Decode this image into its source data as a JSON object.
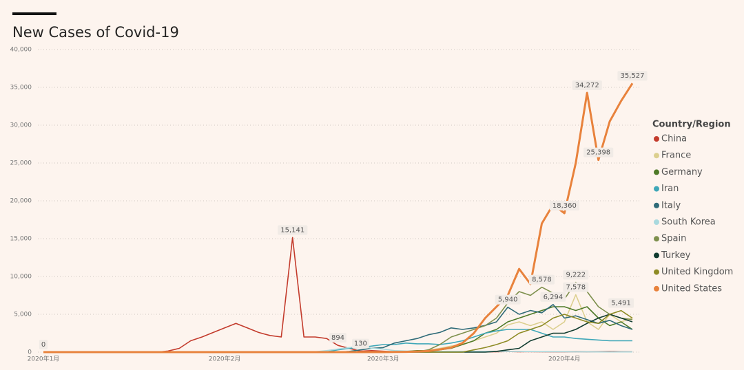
{
  "chart_data": {
    "type": "line",
    "title": "New Cases of Covid-19",
    "legend_title": "Country/Region",
    "legend": "right",
    "ylim": [
      0,
      40000
    ],
    "yticks": [
      0,
      {
        "value": 5000,
        "label": "5,000"
      },
      {
        "value": 10000,
        "label": "10,000"
      },
      {
        "value": 15000,
        "label": "15,000"
      },
      {
        "value": 20000,
        "label": "20,000"
      },
      {
        "value": 25000,
        "label": "25,000"
      },
      {
        "value": 30000,
        "label": "30,000"
      },
      {
        "value": 35000,
        "label": "35,000"
      },
      {
        "value": 40000,
        "label": "40,000"
      }
    ],
    "grid": true,
    "categories": [
      "2020年1月",
      null,
      null,
      null,
      null,
      null,
      null,
      null,
      null,
      null,
      null,
      null,
      null,
      null,
      null,
      null,
      "2020年2月",
      null,
      null,
      null,
      null,
      null,
      null,
      null,
      null,
      null,
      null,
      null,
      null,
      null,
      "2020年3月",
      null,
      null,
      null,
      null,
      null,
      null,
      null,
      null,
      null,
      null,
      null,
      null,
      null,
      null,
      null,
      "2020年4月",
      null,
      null,
      null,
      null,
      null,
      null
    ],
    "series": [
      {
        "name": "China",
        "color": "#c33b2c",
        "values": [
          0,
          0,
          0,
          0,
          0,
          0,
          0,
          0,
          0,
          0,
          0,
          150,
          500,
          1500,
          2000,
          2600,
          3200,
          3800,
          3200,
          2600,
          2200,
          2000,
          15141,
          2000,
          2000,
          1800,
          894,
          500,
          130,
          200,
          120,
          50,
          40,
          30,
          20,
          40,
          50,
          80,
          50,
          40,
          50,
          80,
          50,
          60,
          50,
          40,
          35,
          60,
          40,
          50,
          90,
          50,
          40
        ],
        "value_labels": [
          "0",
          null,
          null,
          null,
          null,
          null,
          null,
          null,
          null,
          null,
          null,
          null,
          null,
          null,
          null,
          null,
          null,
          null,
          null,
          null,
          null,
          null,
          "15,141",
          null,
          null,
          null,
          "894",
          null,
          "130",
          null,
          null,
          null,
          null,
          null,
          null,
          null,
          null,
          null,
          null,
          null,
          null,
          null,
          null,
          null,
          null,
          null,
          null,
          null,
          null,
          null,
          null,
          null,
          null
        ]
      },
      {
        "name": "France",
        "color": "#dccf8e",
        "values": [
          0,
          0,
          0,
          0,
          0,
          0,
          0,
          0,
          0,
          0,
          0,
          0,
          0,
          0,
          0,
          0,
          0,
          0,
          0,
          0,
          0,
          0,
          0,
          0,
          0,
          0,
          0,
          0,
          0,
          0,
          0,
          0,
          0,
          0,
          200,
          500,
          800,
          1000,
          1500,
          2000,
          2500,
          3600,
          4000,
          3500,
          4000,
          3000,
          4000,
          7578,
          4000,
          3000,
          5000,
          4000,
          4500
        ],
        "value_labels": [
          null,
          null,
          null,
          null,
          null,
          null,
          null,
          null,
          null,
          null,
          null,
          null,
          null,
          null,
          null,
          null,
          null,
          null,
          null,
          null,
          null,
          null,
          null,
          null,
          null,
          null,
          null,
          null,
          null,
          null,
          null,
          null,
          null,
          null,
          null,
          null,
          null,
          null,
          null,
          null,
          null,
          null,
          null,
          null,
          null,
          null,
          null,
          "7,578",
          null,
          null,
          null,
          null,
          null
        ]
      },
      {
        "name": "Germany",
        "color": "#4e7a27",
        "values": [
          0,
          0,
          0,
          0,
          0,
          0,
          0,
          0,
          0,
          0,
          0,
          0,
          0,
          0,
          0,
          0,
          0,
          0,
          0,
          0,
          0,
          0,
          0,
          0,
          0,
          0,
          0,
          0,
          0,
          0,
          0,
          0,
          100,
          200,
          200,
          300,
          500,
          1000,
          1500,
          2500,
          3000,
          4000,
          4500,
          5000,
          5500,
          6000,
          6000,
          5500,
          6000,
          4500,
          3500,
          4000,
          3000
        ]
      },
      {
        "name": "Iran",
        "color": "#3ea7b8",
        "values": [
          0,
          0,
          0,
          0,
          0,
          0,
          0,
          0,
          0,
          0,
          0,
          0,
          0,
          0,
          0,
          0,
          0,
          0,
          0,
          0,
          0,
          0,
          0,
          0,
          0,
          50,
          300,
          500,
          600,
          800,
          1000,
          1000,
          1200,
          1100,
          1100,
          1000,
          1200,
          1500,
          2000,
          2500,
          2800,
          3000,
          3000,
          3000,
          2500,
          2000,
          2000,
          1800,
          1700,
          1600,
          1500,
          1500,
          1500
        ]
      },
      {
        "name": "Italy",
        "color": "#2f6b78",
        "values": [
          0,
          0,
          0,
          0,
          0,
          0,
          0,
          0,
          0,
          0,
          0,
          0,
          0,
          0,
          0,
          0,
          0,
          0,
          0,
          0,
          0,
          0,
          0,
          0,
          0,
          0,
          0,
          100,
          300,
          500,
          600,
          1200,
          1500,
          1800,
          2300,
          2600,
          3200,
          3000,
          3200,
          3526,
          4000,
          5940,
          5000,
          5500,
          5200,
          6294,
          4500,
          4800,
          4300,
          3800,
          4200,
          3500,
          3000
        ],
        "value_labels": [
          null,
          null,
          null,
          null,
          null,
          null,
          null,
          null,
          null,
          null,
          null,
          null,
          null,
          null,
          null,
          null,
          null,
          null,
          null,
          null,
          null,
          null,
          null,
          null,
          null,
          null,
          null,
          null,
          null,
          null,
          null,
          null,
          null,
          null,
          null,
          null,
          null,
          null,
          null,
          null,
          null,
          "5,940",
          null,
          null,
          null,
          "6,294",
          null,
          null,
          null,
          null,
          null,
          null,
          null
        ]
      },
      {
        "name": "South Korea",
        "color": "#a9d9de",
        "values": [
          0,
          0,
          0,
          0,
          0,
          0,
          0,
          0,
          0,
          0,
          0,
          0,
          0,
          0,
          0,
          0,
          0,
          0,
          0,
          0,
          0,
          0,
          0,
          0,
          50,
          200,
          400,
          600,
          800,
          500,
          400,
          200,
          150,
          100,
          100,
          100,
          100,
          100,
          100,
          100,
          90,
          80,
          80,
          70,
          60,
          50,
          50,
          40,
          40,
          30,
          30,
          30,
          30
        ]
      },
      {
        "name": "Spain",
        "color": "#7d8f4c",
        "values": [
          0,
          0,
          0,
          0,
          0,
          0,
          0,
          0,
          0,
          0,
          0,
          0,
          0,
          0,
          0,
          0,
          0,
          0,
          0,
          0,
          0,
          0,
          0,
          0,
          0,
          0,
          0,
          0,
          0,
          0,
          0,
          0,
          0,
          50,
          300,
          1000,
          2000,
          2500,
          3000,
          3500,
          4500,
          6500,
          8000,
          7500,
          8578,
          7800,
          7000,
          9222,
          8000,
          6000,
          5000,
          4500,
          4300
        ],
        "value_labels": [
          null,
          null,
          null,
          null,
          null,
          null,
          null,
          null,
          null,
          null,
          null,
          null,
          null,
          null,
          null,
          null,
          null,
          null,
          null,
          null,
          null,
          null,
          null,
          null,
          null,
          null,
          null,
          null,
          null,
          null,
          null,
          null,
          null,
          null,
          null,
          null,
          null,
          null,
          null,
          null,
          null,
          null,
          null,
          null,
          "8,578",
          null,
          null,
          "9,222",
          null,
          null,
          null,
          null,
          null
        ]
      },
      {
        "name": "Turkey",
        "color": "#103b2f",
        "values": [
          0,
          0,
          0,
          0,
          0,
          0,
          0,
          0,
          0,
          0,
          0,
          0,
          0,
          0,
          0,
          0,
          0,
          0,
          0,
          0,
          0,
          0,
          0,
          0,
          0,
          0,
          0,
          0,
          0,
          0,
          0,
          0,
          0,
          0,
          0,
          0,
          0,
          0,
          0,
          0,
          100,
          300,
          500,
          1500,
          2000,
          2500,
          2500,
          3000,
          3800,
          4500,
          5000,
          4500,
          4000
        ]
      },
      {
        "name": "United Kingdom",
        "color": "#8e8b24",
        "values": [
          0,
          0,
          0,
          0,
          0,
          0,
          0,
          0,
          0,
          0,
          0,
          0,
          0,
          0,
          0,
          0,
          0,
          0,
          0,
          0,
          0,
          0,
          0,
          0,
          0,
          0,
          0,
          0,
          0,
          0,
          0,
          0,
          0,
          0,
          0,
          0,
          0,
          0,
          300,
          600,
          1000,
          1500,
          2500,
          3000,
          3500,
          4500,
          5000,
          4500,
          4000,
          3800,
          5000,
          5491,
          4500
        ],
        "value_labels": [
          null,
          null,
          null,
          null,
          null,
          null,
          null,
          null,
          null,
          null,
          null,
          null,
          null,
          null,
          null,
          null,
          null,
          null,
          null,
          null,
          null,
          null,
          null,
          null,
          null,
          null,
          null,
          null,
          null,
          null,
          null,
          null,
          null,
          null,
          null,
          null,
          null,
          null,
          null,
          null,
          null,
          null,
          null,
          null,
          null,
          null,
          null,
          null,
          null,
          null,
          null,
          "5,491",
          null
        ]
      },
      {
        "name": "United States",
        "color": "#e8823c",
        "values": [
          0,
          0,
          0,
          0,
          0,
          0,
          0,
          0,
          0,
          0,
          0,
          0,
          0,
          0,
          0,
          0,
          0,
          0,
          0,
          0,
          0,
          0,
          0,
          0,
          0,
          0,
          0,
          0,
          0,
          0,
          0,
          20,
          40,
          80,
          150,
          350,
          600,
          1200,
          2500,
          4500,
          6000,
          7500,
          11000,
          9000,
          17000,
          19500,
          18360,
          25000,
          34272,
          25398,
          30500,
          33200,
          35527
        ],
        "value_labels": [
          null,
          null,
          null,
          null,
          null,
          null,
          null,
          null,
          null,
          null,
          null,
          null,
          null,
          null,
          null,
          null,
          null,
          null,
          null,
          null,
          null,
          null,
          null,
          null,
          null,
          null,
          null,
          null,
          null,
          null,
          null,
          null,
          null,
          null,
          null,
          null,
          null,
          null,
          null,
          null,
          null,
          null,
          null,
          null,
          null,
          null,
          "18,360",
          null,
          "34,272",
          "25,398",
          null,
          null,
          "35,527"
        ]
      }
    ]
  }
}
